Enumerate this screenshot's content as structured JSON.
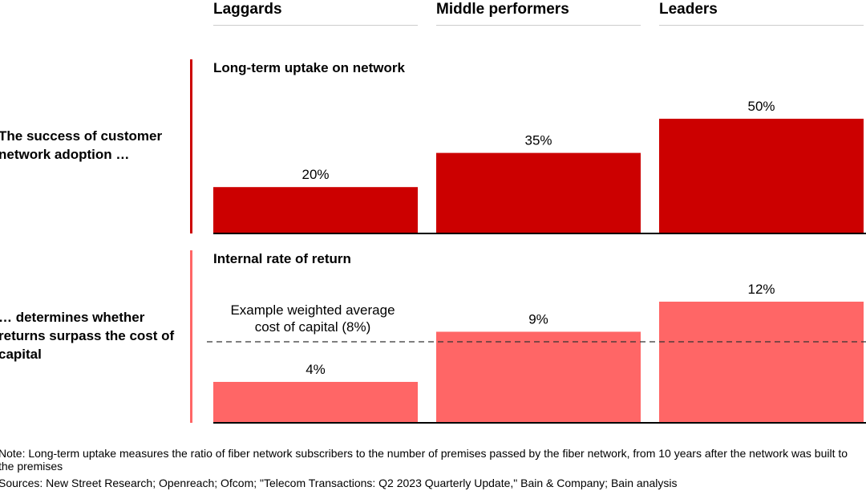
{
  "columns": [
    "Laggards",
    "Middle performers",
    "Leaders"
  ],
  "rows": [
    {
      "label": "The success of customer network adoption …"
    },
    {
      "label": "… determines whether returns surpass the cost of capital"
    }
  ],
  "chart_data": [
    {
      "type": "bar",
      "title": "Long-term uptake on network",
      "categories": [
        "Laggards",
        "Middle performers",
        "Leaders"
      ],
      "values": [
        20,
        35,
        50
      ],
      "data_labels": [
        "20%",
        "35%",
        "50%"
      ],
      "ylim": [
        0,
        50
      ],
      "color": "#CC0000",
      "grid": false
    },
    {
      "type": "bar",
      "title": "Internal rate of return",
      "categories": [
        "Laggards",
        "Middle performers",
        "Leaders"
      ],
      "values": [
        4,
        9,
        12
      ],
      "data_labels": [
        "4%",
        "9%",
        "12%"
      ],
      "ylim": [
        0,
        12
      ],
      "color": "#FF6666",
      "grid": false,
      "reference_line": {
        "value": 8,
        "label": "Example weighted average cost of capital (8%)",
        "style": "dashed"
      }
    }
  ],
  "notes": {
    "note": "Note: Long-term uptake measures the ratio of fiber network subscribers to the number of premises passed by the fiber network, from 10 years after the network was built to the premises",
    "sources": "Sources: New Street Research; Openreach; Ofcom; \"Telecom Transactions: Q2 2023 Quarterly Update,\" Bain & Company; Bain analysis"
  }
}
